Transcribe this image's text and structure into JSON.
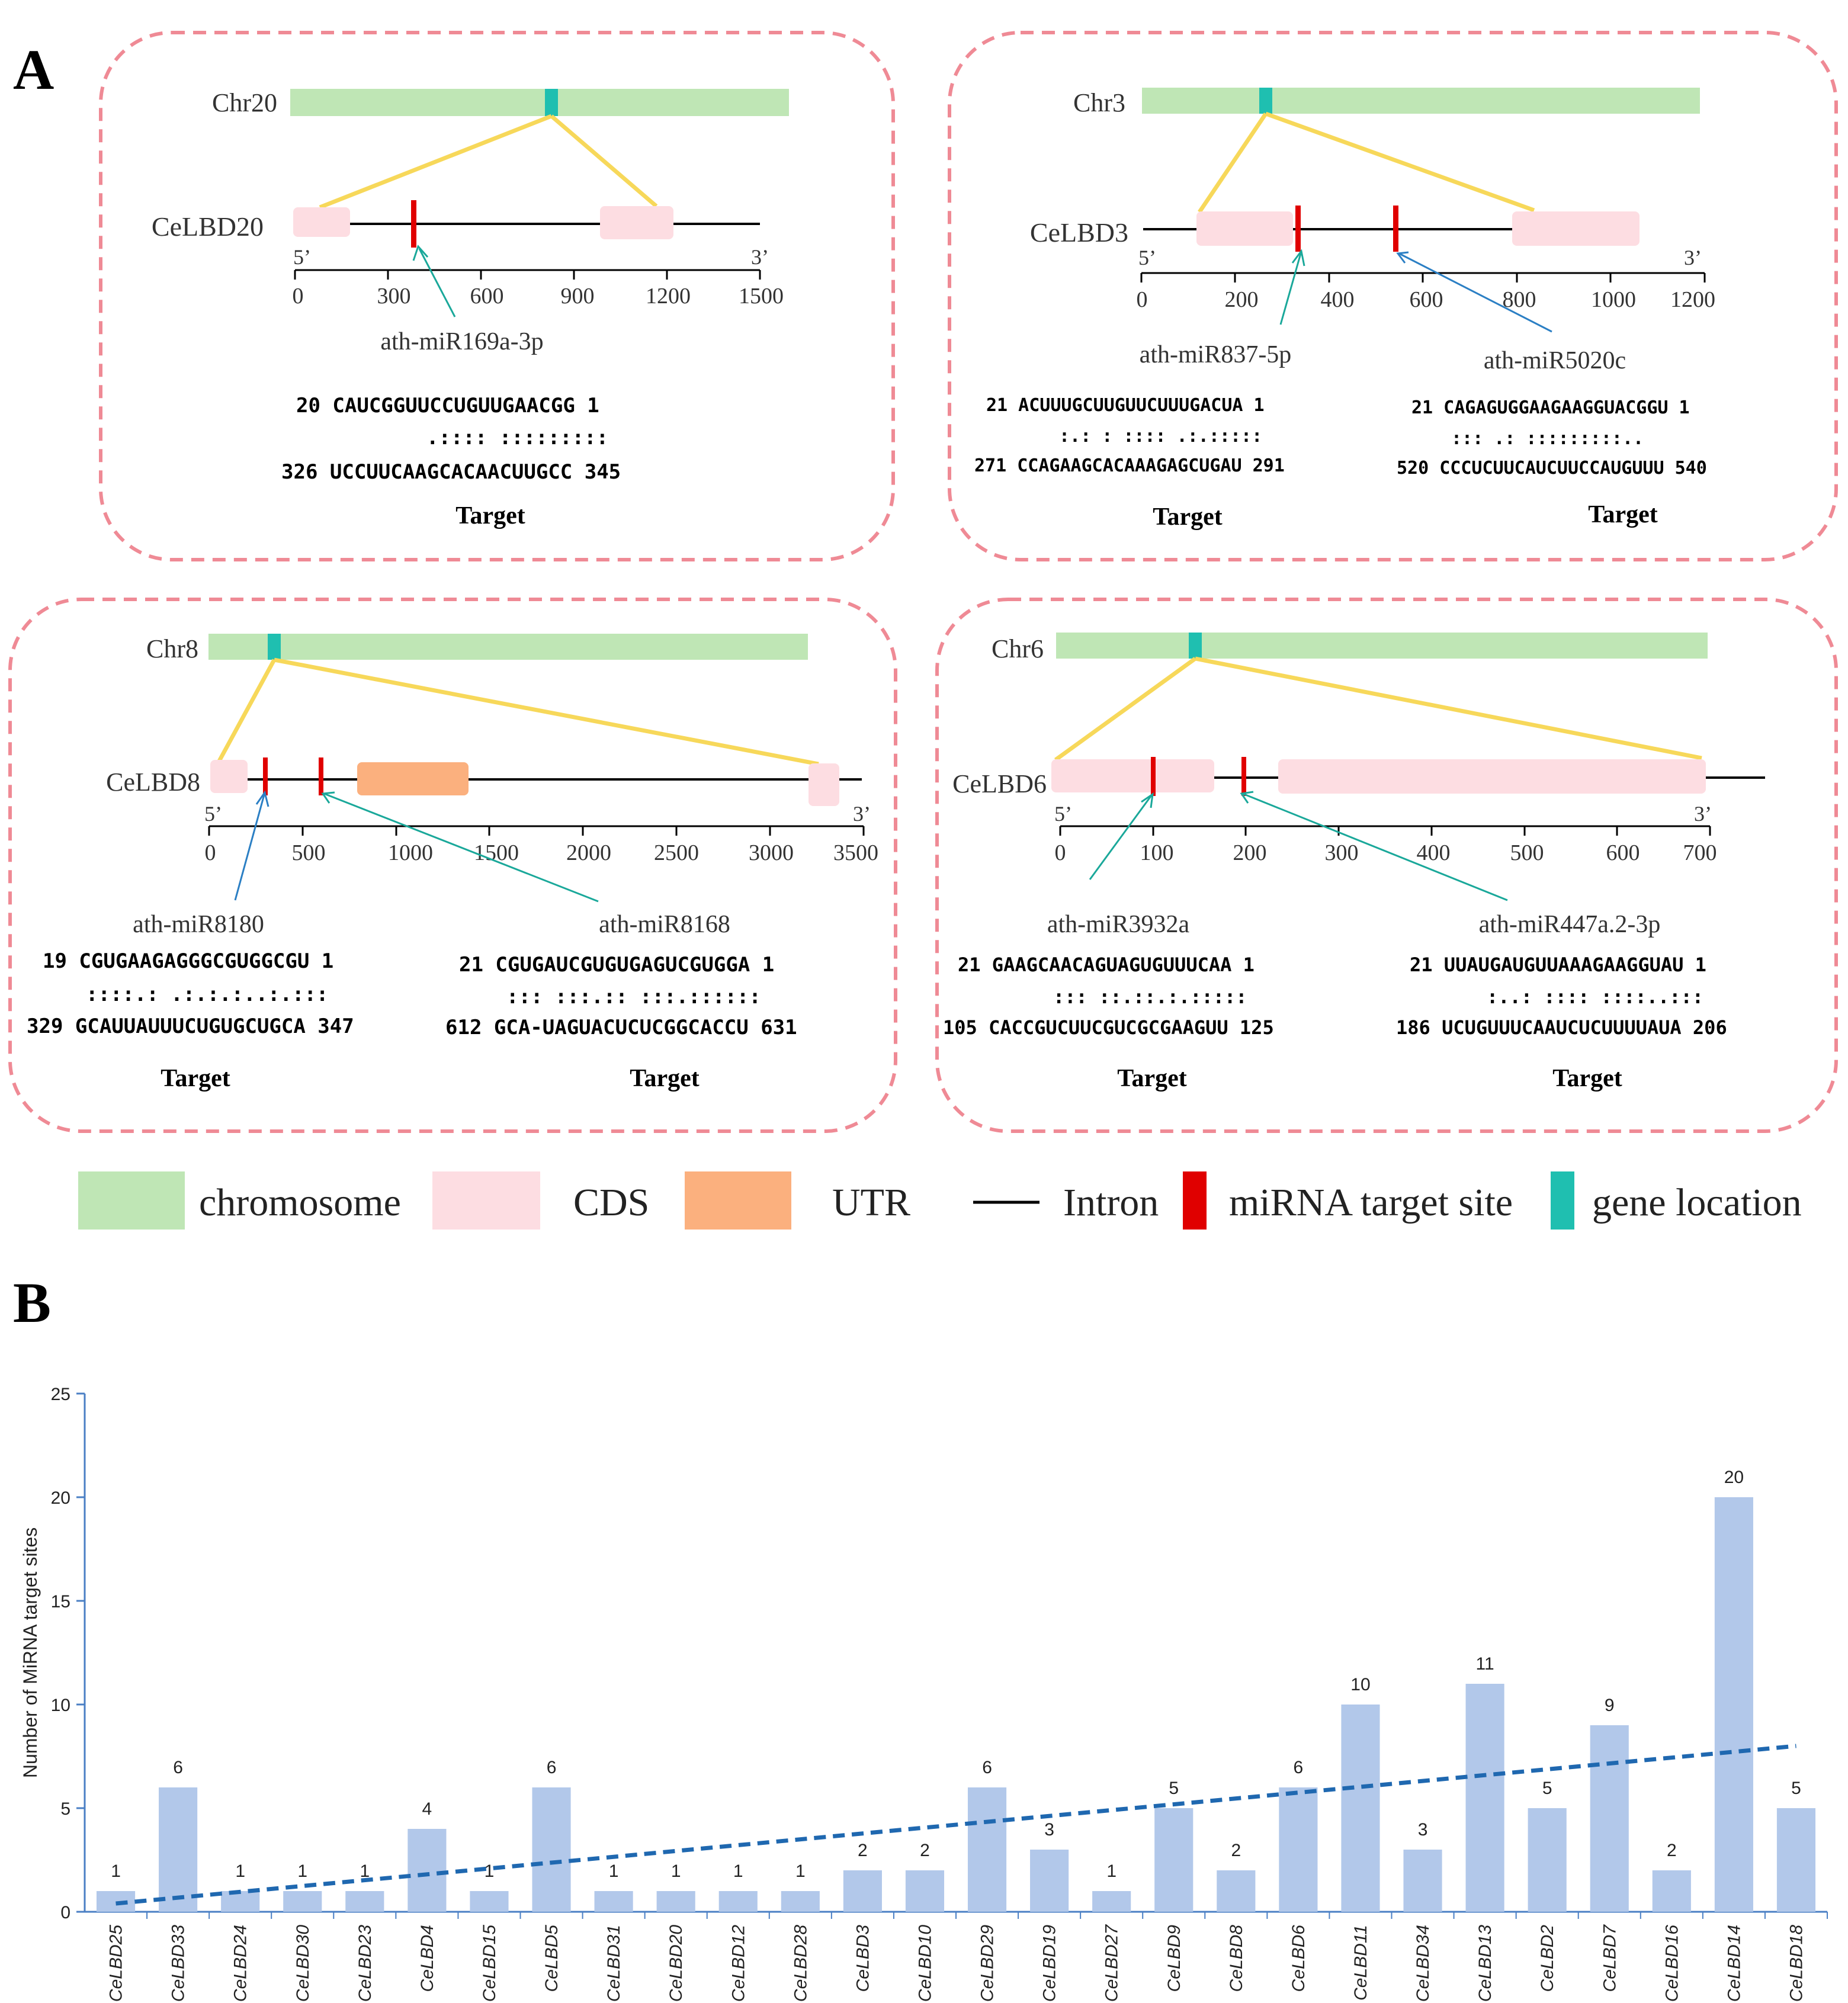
{
  "panel_labels": {
    "a": "A",
    "b": "B"
  },
  "colors": {
    "chromosome": "#bfe6b5",
    "cds": "#fddde2",
    "utr": "#fbb07e",
    "intron": "#000000",
    "mirna_site": "#e00000",
    "gene_location": "#1fbfb0",
    "zoom_lines": "#f7d85a",
    "arrow_teal": "#1aa89a",
    "arrow_blue": "#2b7fc4",
    "panel_border": "#ef8a95",
    "bar": "#b2c8ea",
    "trend": "#1f68b0",
    "axis": "#4a7fc4"
  },
  "gene_panels": [
    {
      "chromosome": "Chr20",
      "gene": "CeLBD20",
      "five_prime": "5’",
      "three_prime": "3’",
      "ticks": [
        "0",
        "300",
        "600",
        "900",
        "1200",
        "1500"
      ],
      "mirnas": [
        "ath-miR169a-3p"
      ],
      "alignments": [
        {
          "mirna": "20 CAUCGGUUCCUGUUGAACGG 1",
          "pairing": ".:::: :::::::::",
          "target_seq": "326 UCCUUCAAGCACAACUUGCC 345",
          "target_label": "Target"
        }
      ]
    },
    {
      "chromosome": "Chr3",
      "gene": "CeLBD3",
      "five_prime": "5’",
      "three_prime": "3’",
      "ticks": [
        "0",
        "200",
        "400",
        "600",
        "800",
        "1000",
        "1200"
      ],
      "mirnas": [
        "ath-miR837-5p",
        "ath-miR5020c"
      ],
      "alignments": [
        {
          "mirna": "21 ACUUUGCUUGUUCUUUGACUA 1",
          "pairing": ":.: : :::: .:.:::::",
          "target_seq": "271 CCAGAAGCACAAAGAGCUGAU 291",
          "target_label": "Target"
        },
        {
          "mirna": "21 CAGAGUGGAAGAAGGUACGGU 1",
          "pairing": "::: .: :::::::::..",
          "target_seq": "520 CCCUCUUCAUCUUCCAUGUUU 540",
          "target_label": "Target"
        }
      ]
    },
    {
      "chromosome": "Chr8",
      "gene": "CeLBD8",
      "five_prime": "5’",
      "three_prime": "3’",
      "ticks": [
        "0",
        "500",
        "1000",
        "1500",
        "2000",
        "2500",
        "3000",
        "3500"
      ],
      "mirnas": [
        "ath-miR8180",
        "ath-miR8168"
      ],
      "alignments": [
        {
          "mirna": "19 CGUGAAGAGGGCGUGGCGU 1",
          "pairing": "::::.: .:.:.:..:.:::",
          "target_seq": "329 GCAUUAUUUCUGUGCUGCA 347",
          "target_label": "Target"
        },
        {
          "mirna": "21 CGUGAUCGUGUGAGUCGUGGA 1",
          "pairing": "::: :::.:: :::.::::::",
          "target_seq": "612 GCA-UAGUACUCUCGGCACCU 631",
          "target_label": "Target"
        }
      ]
    },
    {
      "chromosome": "Chr6",
      "gene": "CeLBD6",
      "five_prime": "5’",
      "three_prime": "3’",
      "ticks": [
        "0",
        "100",
        "200",
        "300",
        "400",
        "500",
        "600",
        "700"
      ],
      "mirnas": [
        "ath-miR3932a",
        "ath-miR447a.2-3p"
      ],
      "alignments": [
        {
          "mirna": "21 GAAGCAACAGUAGUGUUUCAA 1",
          "pairing": ":::   ::.::.:.:::::",
          "target_seq": "105 CACCGUCUUCGUCGCGAAGUU 125",
          "target_label": "Target"
        },
        {
          "mirna": "21 UUAUGAUGUUAAAGAAGGUAU 1",
          "pairing": ":..: :::: ::::..:::",
          "target_seq": "186 UCUGUUUCAAUCUCUUUUAUA 206",
          "target_label": "Target"
        }
      ]
    }
  ],
  "legend": [
    {
      "label": "chromosome",
      "icon": "chromosome-swatch"
    },
    {
      "label": "CDS",
      "icon": "cds-swatch"
    },
    {
      "label": "UTR",
      "icon": "utr-swatch"
    },
    {
      "label": "Intron",
      "icon": "intron-line"
    },
    {
      "label": "miRNA target site",
      "icon": "mirna-site-swatch"
    },
    {
      "label": "gene location",
      "icon": "gene-location-swatch"
    }
  ],
  "chart_data": {
    "type": "bar",
    "title": "",
    "xlabel": "",
    "ylabel": "Number of MiRNA target sites",
    "ylim": [
      0,
      25
    ],
    "yticks": [
      0,
      5,
      10,
      15,
      20,
      25
    ],
    "categories": [
      "CeLBD25",
      "CeLBD33",
      "CeLBD24",
      "CeLBD30",
      "CeLBD23",
      "CeLBD4",
      "CeLBD15",
      "CeLBD5",
      "CeLBD31",
      "CeLBD20",
      "CeLBD12",
      "CeLBD28",
      "CeLBD3",
      "CeLBD10",
      "CeLBD29",
      "CeLBD19",
      "CeLBD27",
      "CeLBD9",
      "CeLBD8",
      "CeLBD6",
      "CeLBD11",
      "CeLBD34",
      "CeLBD13",
      "CeLBD2",
      "CeLBD7",
      "CeLBD16",
      "CeLBD14",
      "CeLBD18"
    ],
    "values": [
      1,
      6,
      1,
      1,
      1,
      4,
      1,
      6,
      1,
      1,
      1,
      1,
      2,
      2,
      6,
      3,
      1,
      5,
      2,
      6,
      10,
      3,
      11,
      5,
      9,
      2,
      20,
      5
    ],
    "trendline": {
      "type": "linear",
      "start": 0.4,
      "end": 8.0
    }
  }
}
